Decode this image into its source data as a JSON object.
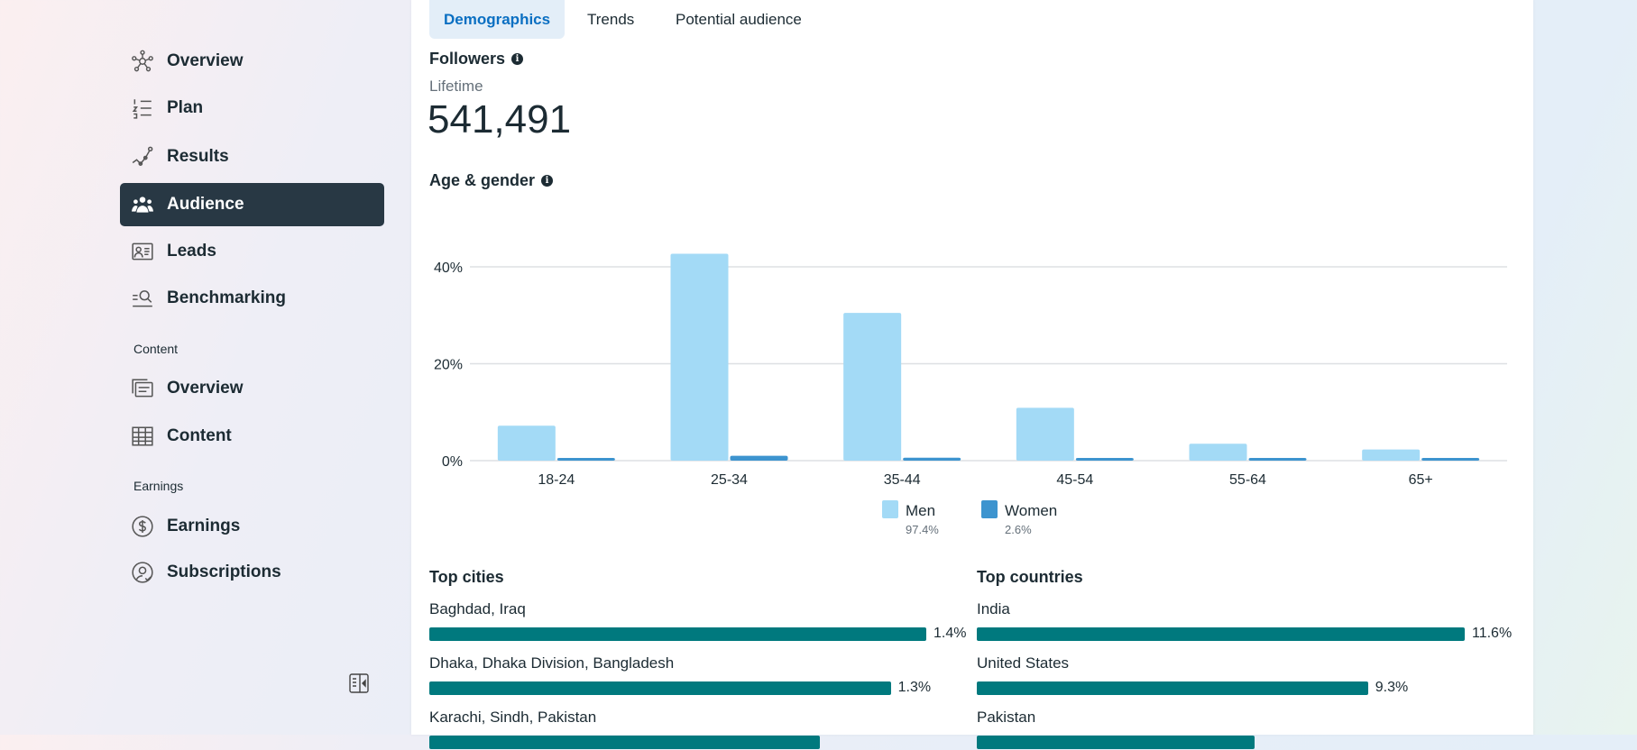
{
  "sidebar": {
    "items": [
      {
        "label": "Overview",
        "icon": "network-icon"
      },
      {
        "label": "Plan",
        "icon": "numbered-list-icon"
      },
      {
        "label": "Results",
        "icon": "line-chart-icon"
      },
      {
        "label": "Audience",
        "icon": "people-icon",
        "active": true
      },
      {
        "label": "Leads",
        "icon": "contact-card-icon"
      },
      {
        "label": "Benchmarking",
        "icon": "search-list-icon"
      }
    ],
    "content_section": "Content",
    "content_items": [
      {
        "label": "Overview",
        "icon": "cards-icon"
      },
      {
        "label": "Content",
        "icon": "table-icon"
      }
    ],
    "earnings_section": "Earnings",
    "earnings_items": [
      {
        "label": "Earnings",
        "icon": "dollar-icon"
      },
      {
        "label": "Subscriptions",
        "icon": "user-check-icon"
      }
    ]
  },
  "tabs": [
    {
      "label": "Demographics",
      "active": true
    },
    {
      "label": "Trends"
    },
    {
      "label": "Potential audience"
    }
  ],
  "followers": {
    "title": "Followers",
    "period": "Lifetime",
    "value": "541,491"
  },
  "age_gender": {
    "title": "Age & gender"
  },
  "chart_data": {
    "type": "bar",
    "categories": [
      "18-24",
      "25-34",
      "35-44",
      "45-54",
      "55-64",
      "65+"
    ],
    "series": [
      {
        "name": "Men",
        "total": "97.4%",
        "color": "#a3daf6",
        "values": [
          7.2,
          42.7,
          30.5,
          10.9,
          3.5,
          2.3
        ]
      },
      {
        "name": "Women",
        "total": "2.6%",
        "color": "#3d94cf",
        "values": [
          0.2,
          1.0,
          0.6,
          0.2,
          0.2,
          0.2
        ]
      }
    ],
    "yticks": [
      "0%",
      "20%",
      "40%"
    ],
    "ylim": [
      0,
      45
    ],
    "grid": true,
    "legend": "bottom"
  },
  "top_cities": {
    "title": "Top cities",
    "items": [
      {
        "label": "Baghdad, Iraq",
        "value": "1.4%",
        "fill": 1.4
      },
      {
        "label": "Dhaka, Dhaka Division, Bangladesh",
        "value": "1.3%",
        "fill": 1.3
      },
      {
        "label": "Karachi, Sindh, Pakistan",
        "fill": 1.1
      }
    ]
  },
  "top_countries": {
    "title": "Top countries",
    "items": [
      {
        "label": "India",
        "value": "11.6%",
        "fill": 11.6
      },
      {
        "label": "United States",
        "value": "9.3%",
        "fill": 9.3
      },
      {
        "label": "Pakistan",
        "fill": 6.6
      }
    ]
  },
  "colors": {
    "active_nav": "#283844",
    "tab_active": "#0a6fc2",
    "bar": "#00797e"
  }
}
